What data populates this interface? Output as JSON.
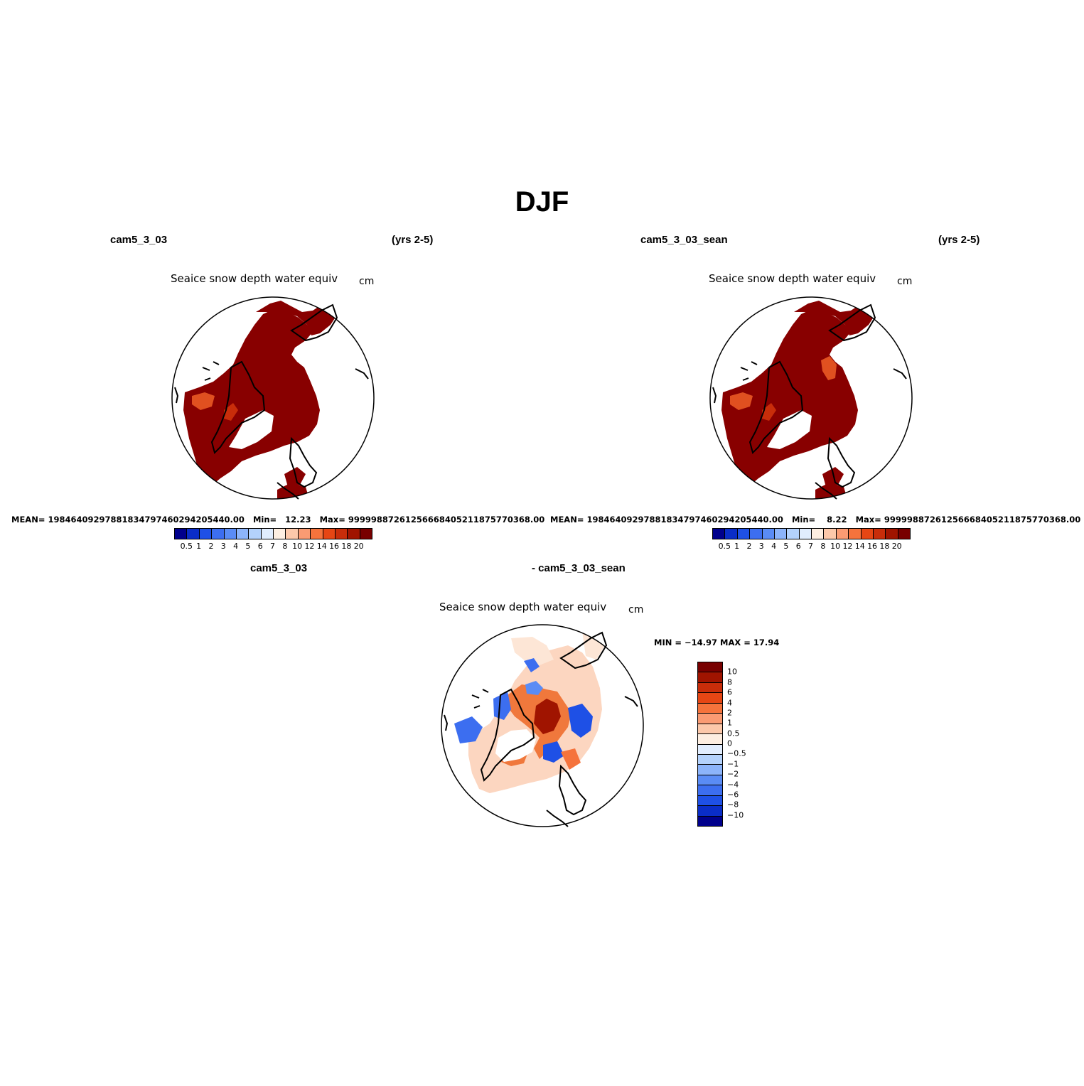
{
  "title": "DJF",
  "panels": [
    {
      "case": "cam5_3_03",
      "years": "(yrs 2-5)",
      "variable": "Seaice snow depth water equiv",
      "units": "cm",
      "mean_label": "MEAN=",
      "mean": "19846409297881834797460294205440.00",
      "min_label": "Min=",
      "min": "12.23",
      "max_label": "Max=",
      "max": "99999887261256668405211875770368.00"
    },
    {
      "case": "cam5_3_03_sean",
      "years": "(yrs 2-5)",
      "variable": "Seaice snow depth water equiv",
      "units": "cm",
      "mean_label": "MEAN=",
      "mean": "19846409297881834797460294205440.00",
      "min_label": "Min=",
      "min": "8.22",
      "max_label": "Max=",
      "max": "99999887261256668405211875770368.00"
    }
  ],
  "diff_panel": {
    "case_a": "cam5_3_03",
    "case_b": "- cam5_3_03_sean",
    "variable": "Seaice snow depth water equiv",
    "units": "cm",
    "minmax": "MIN = −14.97  MAX =  17.94"
  },
  "colorbar_abs": {
    "ticks": [
      "0.5",
      "1",
      "2",
      "3",
      "4",
      "5",
      "6",
      "7",
      "8",
      "10",
      "12",
      "14",
      "16",
      "18",
      "20"
    ],
    "colors": [
      "#00008c",
      "#0a2dc8",
      "#1e50e6",
      "#3c6ef0",
      "#5a8cf5",
      "#8cb4fa",
      "#b4d2fc",
      "#e1edfe",
      "#fdeee1",
      "#fcc8aa",
      "#fa9b73",
      "#f5733c",
      "#e64614",
      "#c82d0a",
      "#a01400",
      "#780000"
    ]
  },
  "colorbar_diff": {
    "ticks": [
      "10",
      "8",
      "6",
      "4",
      "2",
      "1",
      "0.5",
      "0",
      "−0.5",
      "−1",
      "−2",
      "−4",
      "−6",
      "−8",
      "−10"
    ],
    "colors": [
      "#780000",
      "#a01400",
      "#c82d0a",
      "#e64614",
      "#f5733c",
      "#fa9b73",
      "#fcc8aa",
      "#fdeee1",
      "#e1edfe",
      "#b4d2fc",
      "#8cb4fa",
      "#5a8cf5",
      "#3c6ef0",
      "#1e50e6",
      "#0a2dc8",
      "#00008c"
    ]
  }
}
